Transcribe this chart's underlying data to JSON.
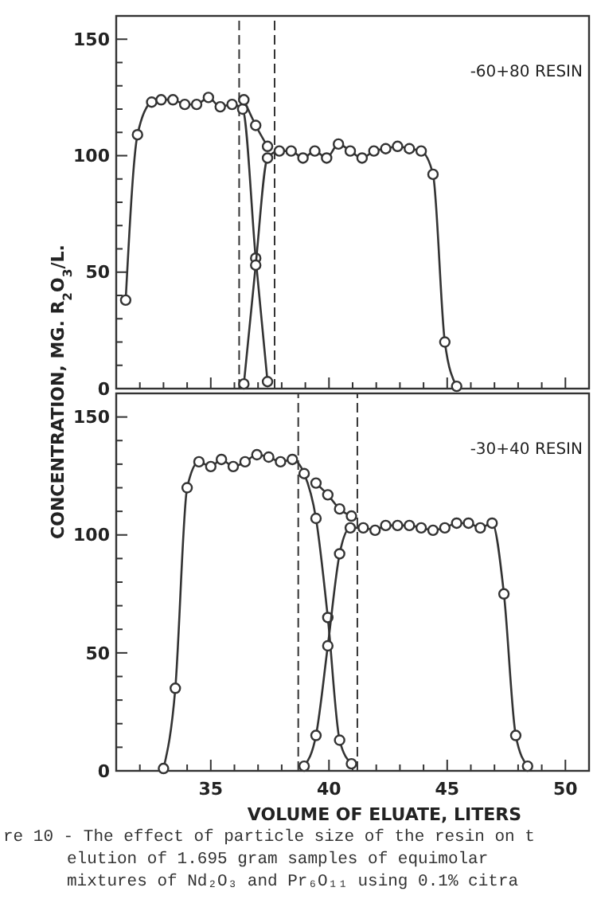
{
  "chart_data": [
    {
      "type": "line",
      "ylabel": "CONCENTRATION, MG. R$_{2}$O$_{3}$/L.",
      "annotations": [
        "-60+80 RESIN"
      ],
      "marker": "circle",
      "line_style": "solid",
      "tick_labels": "y",
      "xlim": [
        31,
        51
      ],
      "ylim": [
        0,
        160
      ],
      "xticks": [
        {
          "value": 32,
          "label": null
        },
        {
          "value": 33,
          "label": null
        },
        {
          "value": 34,
          "label": null
        },
        35,
        {
          "value": 36,
          "label": null
        },
        {
          "value": 37,
          "label": null
        },
        {
          "value": 38,
          "label": null
        },
        {
          "value": 39,
          "label": null
        },
        40,
        {
          "value": 41,
          "label": null
        },
        {
          "value": 42,
          "label": null
        },
        {
          "value": 43,
          "label": null
        },
        {
          "value": 44,
          "label": null
        },
        45,
        {
          "value": 46,
          "label": null
        },
        {
          "value": 47,
          "label": null
        },
        {
          "value": 48,
          "label": null
        },
        {
          "value": 49,
          "label": null
        },
        50
      ],
      "yticks": [
        0,
        {
          "value": 10,
          "label": null
        },
        {
          "value": 20,
          "label": null
        },
        {
          "value": 30,
          "label": null
        },
        {
          "value": 40,
          "label": null
        },
        50,
        {
          "value": 60,
          "label": null
        },
        {
          "value": 70,
          "label": null
        },
        {
          "value": 80,
          "label": null
        },
        {
          "value": 90,
          "label": null
        },
        100,
        {
          "value": 110,
          "label": null
        },
        {
          "value": 120,
          "label": null
        },
        {
          "value": 130,
          "label": null
        },
        {
          "value": 140,
          "label": null
        },
        150
      ],
      "ref_lines": [
        {
          "axis": "x",
          "value": 36.2,
          "line_style": "dashed"
        },
        {
          "axis": "x",
          "value": 37.7,
          "line_style": "dashed"
        }
      ],
      "series": [
        {
          "color": "#333333",
          "x": [
            31.4,
            31.9,
            32.5,
            32.9,
            33.4,
            33.9,
            34.4,
            34.9,
            35.4,
            35.9,
            36.35,
            36.9,
            37.4
          ],
          "values": [
            38,
            109,
            123,
            124,
            124,
            122,
            122,
            125,
            121,
            122,
            120,
            56,
            3
          ]
        },
        {
          "color": "#333333",
          "x": [
            36.4,
            36.9,
            37.4,
            37.9,
            38.4,
            38.9,
            39.4,
            39.9,
            40.4,
            40.9,
            41.4,
            41.9,
            42.4,
            42.9,
            43.4,
            43.9,
            44.4,
            44.9,
            45.4
          ],
          "values": [
            2,
            53,
            99,
            102,
            102,
            99,
            102,
            99,
            105,
            102,
            99,
            102,
            103,
            104,
            103,
            102,
            92,
            20,
            1
          ]
        },
        {
          "color": "#333333",
          "x": [
            36.4,
            36.9,
            37.4
          ],
          "values": [
            124,
            113,
            104
          ]
        }
      ]
    },
    {
      "type": "line",
      "xlabel": "VOLUME OF ELUATE, LITERS",
      "annotations": [
        "-30+40 RESIN",
        "re 10 - The effect of particle size of the resin on t",
        "elution of 1.695 gram samples of equimolar",
        "mixtures of Nd₂O₃ and Pr₆O₁₁ using 0.1% citra"
      ],
      "marker": "circle",
      "line_style": "solid",
      "xlim": [
        31,
        51
      ],
      "ylim": [
        0,
        160
      ],
      "xticks": [
        {
          "value": 32,
          "label": null
        },
        {
          "value": 33,
          "label": null
        },
        {
          "value": 34,
          "label": null
        },
        35,
        {
          "value": 36,
          "label": null
        },
        {
          "value": 37,
          "label": null
        },
        {
          "value": 38,
          "label": null
        },
        {
          "value": 39,
          "label": null
        },
        40,
        {
          "value": 41,
          "label": null
        },
        {
          "value": 42,
          "label": null
        },
        {
          "value": 43,
          "label": null
        },
        {
          "value": 44,
          "label": null
        },
        45,
        {
          "value": 46,
          "label": null
        },
        {
          "value": 47,
          "label": null
        },
        {
          "value": 48,
          "label": null
        },
        {
          "value": 49,
          "label": null
        },
        50
      ],
      "yticks": [
        0,
        {
          "value": 10,
          "label": null
        },
        {
          "value": 20,
          "label": null
        },
        {
          "value": 30,
          "label": null
        },
        {
          "value": 40,
          "label": null
        },
        50,
        {
          "value": 60,
          "label": null
        },
        {
          "value": 70,
          "label": null
        },
        {
          "value": 80,
          "label": null
        },
        {
          "value": 90,
          "label": null
        },
        100,
        {
          "value": 110,
          "label": null
        },
        {
          "value": 120,
          "label": null
        },
        {
          "value": 130,
          "label": null
        },
        {
          "value": 140,
          "label": null
        },
        150
      ],
      "ref_lines": [
        {
          "axis": "x",
          "value": 38.7,
          "line_style": "dashed"
        },
        {
          "axis": "x",
          "value": 41.2,
          "line_style": "dashed"
        }
      ],
      "series": [
        {
          "color": "#333333",
          "x": [
            33.0,
            33.5,
            34.0,
            34.5,
            35.0,
            35.45,
            35.95,
            36.45,
            36.95,
            37.45,
            37.95,
            38.45,
            38.95,
            39.45,
            39.95,
            40.45,
            40.95
          ],
          "values": [
            1,
            35,
            120,
            131,
            129,
            132,
            129,
            131,
            134,
            133,
            131,
            132,
            126,
            107,
            65,
            13,
            3
          ]
        },
        {
          "color": "#333333",
          "x": [
            38.95,
            39.45,
            39.95,
            40.45,
            40.9,
            41.45,
            41.95,
            42.4,
            42.9,
            43.4,
            43.9,
            44.4,
            44.9,
            45.4,
            45.9,
            46.4,
            46.9,
            47.4,
            47.9,
            48.4
          ],
          "values": [
            2,
            15,
            53,
            92,
            103,
            103,
            102,
            104,
            104,
            104,
            103,
            102,
            103,
            105,
            105,
            103,
            105,
            75,
            15,
            2
          ]
        },
        {
          "color": "#333333",
          "x": [
            39.45,
            39.95,
            40.45,
            40.95
          ],
          "values": [
            122,
            117,
            111,
            108
          ]
        }
      ]
    }
  ]
}
